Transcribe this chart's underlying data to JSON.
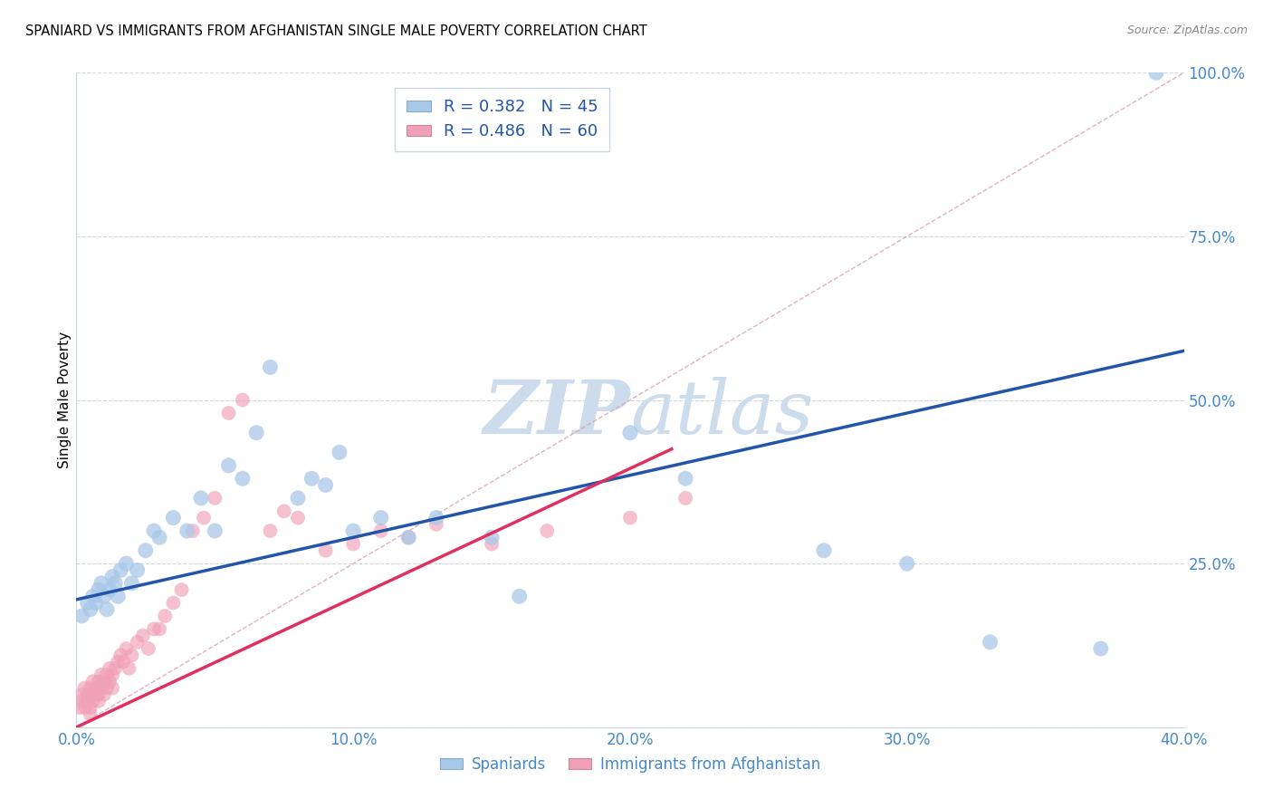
{
  "title": "SPANIARD VS IMMIGRANTS FROM AFGHANISTAN SINGLE MALE POVERTY CORRELATION CHART",
  "source": "Source: ZipAtlas.com",
  "ylabel": "Single Male Poverty",
  "xlim": [
    0.0,
    0.4
  ],
  "ylim": [
    0.0,
    1.0
  ],
  "xticks": [
    0.0,
    0.1,
    0.2,
    0.3,
    0.4
  ],
  "xtick_labels": [
    "0.0%",
    "10.0%",
    "20.0%",
    "30.0%",
    "40.0%"
  ],
  "yticks": [
    0.0,
    0.25,
    0.5,
    0.75,
    1.0
  ],
  "ytick_labels": [
    "",
    "25.0%",
    "50.0%",
    "75.0%",
    "100.0%"
  ],
  "legend_r1": "R = 0.382",
  "legend_n1": "N = 45",
  "legend_r2": "R = 0.486",
  "legend_n2": "N = 60",
  "color_spaniards": "#a8c8e8",
  "color_afghanistan": "#f0a0b8",
  "color_blue_line": "#2255aa",
  "color_pink_line": "#e03060",
  "color_axis_labels": "#4488cc",
  "watermark_color": "#ccdcec",
  "spaniards_x": [
    0.002,
    0.004,
    0.005,
    0.006,
    0.007,
    0.008,
    0.009,
    0.01,
    0.011,
    0.012,
    0.013,
    0.014,
    0.015,
    0.016,
    0.018,
    0.02,
    0.022,
    0.025,
    0.028,
    0.03,
    0.035,
    0.04,
    0.045,
    0.05,
    0.055,
    0.06,
    0.065,
    0.07,
    0.08,
    0.085,
    0.09,
    0.095,
    0.1,
    0.11,
    0.12,
    0.13,
    0.15,
    0.16,
    0.2,
    0.22,
    0.27,
    0.3,
    0.33,
    0.37,
    0.39
  ],
  "spaniards_y": [
    0.17,
    0.19,
    0.18,
    0.2,
    0.19,
    0.21,
    0.22,
    0.2,
    0.18,
    0.21,
    0.23,
    0.22,
    0.2,
    0.24,
    0.25,
    0.22,
    0.24,
    0.27,
    0.3,
    0.29,
    0.32,
    0.3,
    0.35,
    0.3,
    0.4,
    0.38,
    0.45,
    0.55,
    0.35,
    0.38,
    0.37,
    0.42,
    0.3,
    0.32,
    0.29,
    0.32,
    0.29,
    0.2,
    0.45,
    0.38,
    0.27,
    0.25,
    0.13,
    0.12,
    1.0
  ],
  "afghanistan_x": [
    0.001,
    0.002,
    0.002,
    0.003,
    0.003,
    0.004,
    0.004,
    0.005,
    0.005,
    0.005,
    0.006,
    0.006,
    0.006,
    0.007,
    0.007,
    0.008,
    0.008,
    0.008,
    0.009,
    0.009,
    0.01,
    0.01,
    0.011,
    0.011,
    0.012,
    0.012,
    0.013,
    0.013,
    0.014,
    0.015,
    0.016,
    0.017,
    0.018,
    0.019,
    0.02,
    0.022,
    0.024,
    0.026,
    0.028,
    0.03,
    0.032,
    0.035,
    0.038,
    0.042,
    0.046,
    0.05,
    0.055,
    0.06,
    0.07,
    0.075,
    0.08,
    0.09,
    0.1,
    0.11,
    0.12,
    0.13,
    0.15,
    0.17,
    0.2,
    0.22
  ],
  "afghanistan_y": [
    0.03,
    0.04,
    0.05,
    0.03,
    0.06,
    0.04,
    0.05,
    0.02,
    0.03,
    0.06,
    0.04,
    0.05,
    0.07,
    0.05,
    0.06,
    0.04,
    0.05,
    0.07,
    0.06,
    0.08,
    0.05,
    0.07,
    0.06,
    0.08,
    0.07,
    0.09,
    0.06,
    0.08,
    0.09,
    0.1,
    0.11,
    0.1,
    0.12,
    0.09,
    0.11,
    0.13,
    0.14,
    0.12,
    0.15,
    0.15,
    0.17,
    0.19,
    0.21,
    0.3,
    0.32,
    0.35,
    0.48,
    0.5,
    0.3,
    0.33,
    0.32,
    0.27,
    0.28,
    0.3,
    0.29,
    0.31,
    0.28,
    0.3,
    0.32,
    0.35
  ],
  "blue_line_x": [
    0.0,
    0.4
  ],
  "blue_line_y": [
    0.195,
    0.575
  ],
  "pink_line_x": [
    0.0,
    0.215
  ],
  "pink_line_y": [
    0.0,
    0.425
  ],
  "ref_line_x": [
    0.0,
    0.4
  ],
  "ref_line_y": [
    0.0,
    1.0
  ]
}
